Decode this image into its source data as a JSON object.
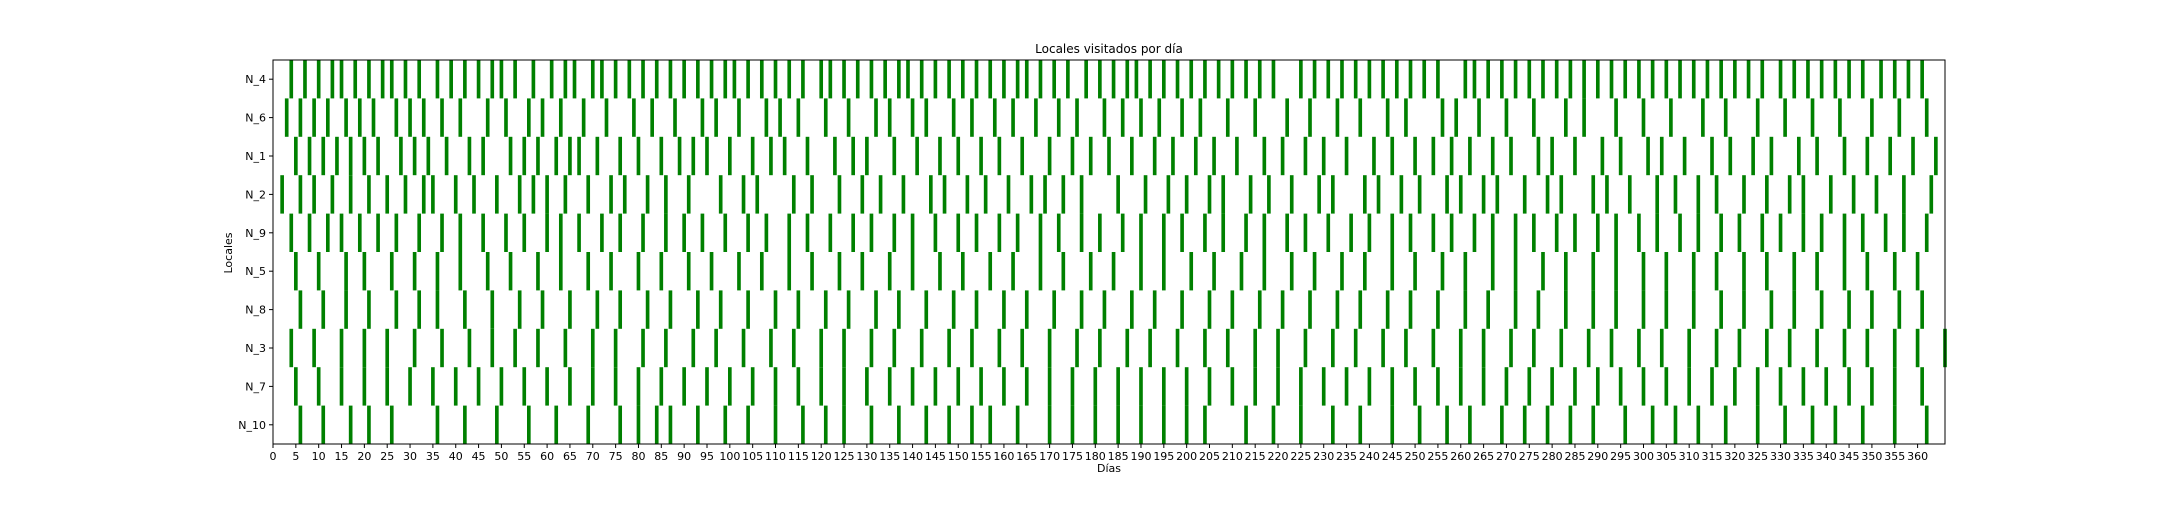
{
  "chart_data": {
    "type": "heatmap",
    "title": "Locales visitados por día",
    "xlabel": "Días",
    "ylabel": "Locales",
    "xlim": [
      0,
      366
    ],
    "x_ticks": [
      0,
      5,
      10,
      15,
      20,
      25,
      30,
      35,
      40,
      45,
      50,
      55,
      60,
      65,
      70,
      75,
      80,
      85,
      90,
      95,
      100,
      105,
      110,
      115,
      120,
      125,
      130,
      135,
      140,
      145,
      150,
      155,
      160,
      165,
      170,
      175,
      180,
      185,
      190,
      195,
      200,
      205,
      210,
      215,
      220,
      225,
      230,
      235,
      240,
      245,
      250,
      255,
      260,
      265,
      270,
      275,
      280,
      285,
      290,
      295,
      300,
      305,
      310,
      315,
      320,
      325,
      330,
      335,
      340,
      345,
      350,
      355,
      360
    ],
    "categories": [
      "N_4",
      "N_6",
      "N_1",
      "N_2",
      "N_9",
      "N_5",
      "N_8",
      "N_3",
      "N_7",
      "N_10"
    ],
    "bar_color": "#008000",
    "grid": false,
    "series": [
      {
        "name": "N_4",
        "days": [
          4,
          7,
          10,
          13,
          15,
          18,
          21,
          24,
          26,
          29,
          32,
          36,
          39,
          42,
          45,
          48,
          50,
          53,
          57,
          61,
          64,
          66,
          70,
          72,
          75,
          78,
          81,
          84,
          87,
          90,
          93,
          96,
          99,
          101,
          104,
          107,
          110,
          113,
          116,
          120,
          122,
          125,
          128,
          131,
          134,
          137,
          139,
          142,
          145,
          148,
          151,
          154,
          157,
          160,
          163,
          165,
          168,
          171,
          174,
          178,
          181,
          184,
          187,
          189,
          192,
          195,
          198,
          201,
          204,
          207,
          210,
          213,
          216,
          219,
          225,
          228,
          231,
          234,
          237,
          240,
          243,
          246,
          249,
          252,
          255,
          261,
          263,
          266,
          269,
          272,
          275,
          278,
          281,
          284,
          287,
          290,
          293,
          296,
          299,
          302,
          305,
          308,
          311,
          314,
          317,
          320,
          323,
          326,
          330,
          333,
          336,
          339,
          342,
          345,
          348,
          352,
          355,
          358,
          361
        ]
      },
      {
        "name": "N_6",
        "days": [
          3,
          6,
          9,
          12,
          16,
          19,
          22,
          27,
          30,
          33,
          37,
          41,
          47,
          51,
          56,
          59,
          63,
          68,
          73,
          79,
          83,
          88,
          94,
          97,
          102,
          108,
          111,
          115,
          121,
          126,
          132,
          135,
          140,
          143,
          149,
          153,
          158,
          162,
          167,
          172,
          176,
          182,
          186,
          190,
          194,
          199,
          203,
          209,
          215,
          222,
          227,
          233,
          238,
          244,
          248,
          256,
          259,
          264,
          270,
          276,
          283,
          287,
          294,
          300,
          306,
          313,
          318,
          325,
          331,
          337,
          343,
          350,
          356,
          362
        ]
      },
      {
        "name": "N_1",
        "days": [
          5,
          8,
          11,
          14,
          17,
          20,
          23,
          28,
          31,
          34,
          38,
          43,
          46,
          52,
          55,
          58,
          62,
          65,
          67,
          71,
          76,
          80,
          85,
          89,
          92,
          95,
          100,
          105,
          109,
          112,
          117,
          123,
          127,
          130,
          136,
          141,
          146,
          150,
          155,
          159,
          164,
          170,
          175,
          179,
          183,
          188,
          193,
          197,
          202,
          206,
          211,
          217,
          221,
          226,
          230,
          235,
          241,
          245,
          250,
          254,
          258,
          262,
          267,
          271,
          277,
          280,
          285,
          291,
          295,
          301,
          304,
          309,
          315,
          319,
          324,
          328,
          334,
          338,
          344,
          349,
          354,
          359,
          364
        ]
      },
      {
        "name": "N_2",
        "days": [
          2,
          6,
          9,
          13,
          17,
          21,
          25,
          29,
          33,
          35,
          40,
          44,
          49,
          54,
          57,
          60,
          64,
          69,
          74,
          77,
          82,
          86,
          91,
          98,
          103,
          106,
          114,
          118,
          124,
          129,
          133,
          138,
          144,
          147,
          152,
          156,
          161,
          166,
          169,
          173,
          177,
          185,
          191,
          196,
          200,
          205,
          208,
          214,
          218,
          223,
          229,
          232,
          239,
          242,
          247,
          251,
          257,
          260,
          265,
          268,
          274,
          279,
          282,
          289,
          292,
          297,
          303,
          307,
          312,
          316,
          322,
          327,
          332,
          335,
          341,
          346,
          351,
          357,
          363
        ]
      },
      {
        "name": "N_9",
        "days": [
          4,
          8,
          12,
          15,
          19,
          23,
          27,
          32,
          37,
          41,
          46,
          51,
          55,
          60,
          63,
          67,
          72,
          76,
          81,
          86,
          90,
          94,
          99,
          104,
          108,
          113,
          117,
          122,
          127,
          131,
          136,
          140,
          145,
          150,
          154,
          159,
          163,
          168,
          172,
          177,
          181,
          186,
          190,
          195,
          199,
          204,
          208,
          213,
          217,
          222,
          226,
          231,
          236,
          240,
          245,
          249,
          254,
          258,
          263,
          267,
          272,
          276,
          281,
          285,
          290,
          294,
          299,
          303,
          308,
          312,
          317,
          321,
          326,
          330,
          335,
          339,
          344,
          348,
          353,
          357,
          362
        ]
      },
      {
        "name": "N_5",
        "days": [
          5,
          10,
          16,
          20,
          26,
          31,
          36,
          41,
          47,
          52,
          58,
          63,
          69,
          74,
          80,
          85,
          91,
          96,
          102,
          107,
          113,
          118,
          124,
          129,
          135,
          140,
          146,
          151,
          157,
          162,
          168,
          173,
          179,
          184,
          190,
          195,
          201,
          206,
          212,
          217,
          223,
          228,
          234,
          239,
          245,
          250,
          256,
          261,
          267,
          272,
          278,
          283,
          289,
          294,
          300,
          305,
          311,
          316,
          322,
          327,
          333,
          338,
          344,
          349,
          355,
          360
        ]
      },
      {
        "name": "N_8",
        "days": [
          6,
          11,
          16,
          21,
          27,
          32,
          36,
          42,
          48,
          54,
          59,
          65,
          71,
          76,
          82,
          87,
          93,
          98,
          104,
          110,
          115,
          121,
          126,
          132,
          137,
          143,
          149,
          154,
          160,
          165,
          171,
          177,
          182,
          188,
          193,
          199,
          205,
          210,
          216,
          221,
          227,
          233,
          238,
          244,
          249,
          255,
          261,
          266,
          272,
          277,
          283,
          289,
          294,
          300,
          305,
          311,
          317,
          322,
          328,
          333,
          339,
          345,
          350,
          356,
          361
        ]
      },
      {
        "name": "N_3",
        "days": [
          4,
          9,
          15,
          20,
          25,
          31,
          37,
          43,
          48,
          53,
          58,
          64,
          70,
          75,
          81,
          86,
          92,
          97,
          103,
          109,
          114,
          120,
          125,
          131,
          136,
          142,
          148,
          153,
          159,
          164,
          170,
          176,
          181,
          187,
          192,
          198,
          204,
          209,
          215,
          220,
          226,
          232,
          237,
          243,
          248,
          254,
          260,
          265,
          271,
          276,
          282,
          288,
          293,
          299,
          304,
          310,
          316,
          321,
          327,
          332,
          338,
          344,
          349,
          355,
          360,
          366
        ]
      },
      {
        "name": "N_7",
        "days": [
          5,
          10,
          15,
          20,
          25,
          30,
          35,
          40,
          45,
          50,
          55,
          60,
          65,
          70,
          75,
          80,
          85,
          90,
          95,
          100,
          105,
          110,
          115,
          120,
          125,
          130,
          135,
          140,
          145,
          150,
          155,
          160,
          165,
          170,
          175,
          180,
          185,
          190,
          195,
          200,
          205,
          210,
          215,
          220,
          225,
          230,
          235,
          240,
          245,
          250,
          255,
          260,
          265,
          270,
          275,
          280,
          285,
          290,
          295,
          300,
          305,
          310,
          315,
          320,
          325,
          330,
          335,
          340,
          345,
          350,
          355,
          361
        ]
      },
      {
        "name": "N_10",
        "days": [
          6,
          11,
          17,
          21,
          26,
          36,
          42,
          49,
          56,
          62,
          69,
          76,
          80,
          84,
          87,
          93,
          99,
          104,
          110,
          116,
          121,
          125,
          131,
          137,
          143,
          148,
          153,
          157,
          163,
          170,
          175,
          180,
          185,
          190,
          195,
          200,
          204,
          213,
          219,
          225,
          232,
          238,
          245,
          251,
          257,
          262,
          269,
          274,
          279,
          284,
          289,
          296,
          302,
          307,
          312,
          318,
          325,
          331,
          337,
          342,
          348,
          355,
          362
        ]
      }
    ]
  }
}
